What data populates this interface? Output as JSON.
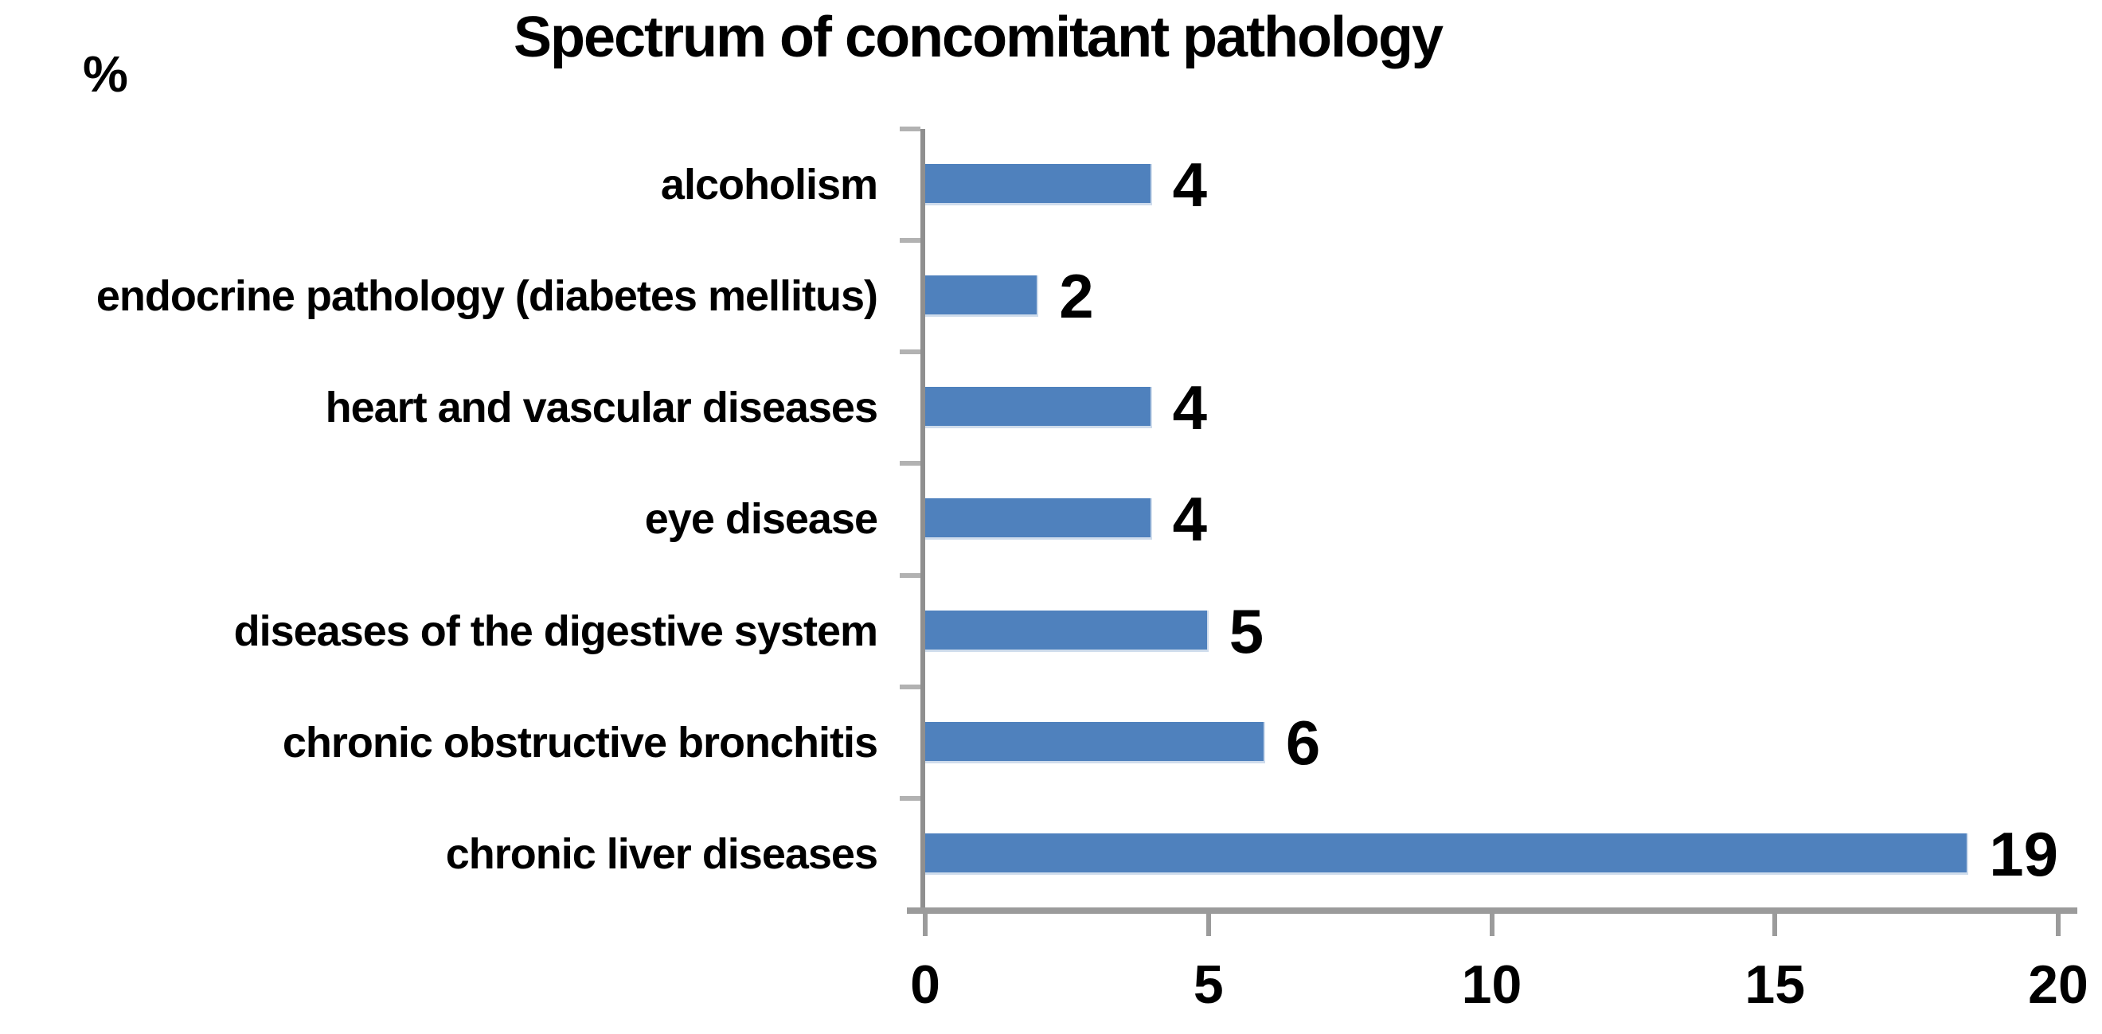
{
  "chart_data": {
    "type": "bar",
    "orientation": "horizontal",
    "title": "Spectrum of concomitant pathology",
    "unit_label": "%",
    "categories": [
      "alcoholism",
      "endocrine pathology (diabetes mellitus)",
      "heart and vascular diseases",
      "eye disease",
      "diseases of the digestive system",
      "chronic obstructive bronchitis",
      "chronic liver diseases"
    ],
    "values": [
      4,
      2,
      4,
      4,
      5,
      6,
      19
    ],
    "data_labels": [
      4,
      2,
      4,
      4,
      5,
      6,
      19
    ],
    "xlim": [
      0,
      20
    ],
    "x_ticks": [
      0,
      5,
      10,
      15,
      20
    ],
    "legend": "none",
    "grid": false,
    "bar_color": "#4F81BD",
    "axis_color": "#9b9b9b",
    "text_color": "#000000"
  }
}
